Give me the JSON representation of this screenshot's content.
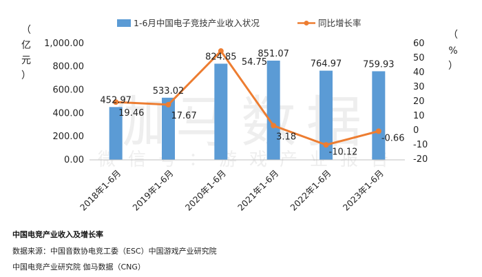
{
  "chart_data": {
    "type": "bar",
    "categories": [
      "2018年1-6月",
      "2019年1-6月",
      "2020年1-6月",
      "2021年1-6月",
      "2022年1-6月",
      "2023年1-6月"
    ],
    "series": [
      {
        "name": "1-6月中国电子竞技产业收入状况",
        "type": "bar",
        "axis": "left",
        "color": "#5b9bd5",
        "values": [
          452.97,
          533.02,
          824.85,
          851.07,
          764.97,
          759.93
        ],
        "labels": [
          "452.97",
          "533.02",
          "824.85",
          "851.07",
          "764.97",
          "759.93"
        ]
      },
      {
        "name": "同比增长率",
        "type": "line",
        "axis": "right",
        "color": "#ed7d31",
        "values": [
          19.46,
          17.67,
          54.75,
          3.18,
          -10.12,
          -0.66
        ],
        "labels": [
          "19.46",
          "17.67",
          "54.75",
          "3.18",
          "-10.12",
          "-0.66"
        ]
      }
    ],
    "y_left": {
      "label_chars": [
        "（",
        "亿",
        "元",
        "）"
      ],
      "range": [
        0,
        1000
      ],
      "ticks": [
        "0.00",
        "200.00",
        "400.00",
        "600.00",
        "800.00",
        "1,000.00"
      ],
      "tick_values": [
        0,
        200,
        400,
        600,
        800,
        1000
      ]
    },
    "y_right": {
      "label_chars": [
        "（",
        "%",
        "）"
      ],
      "range": [
        -20,
        60
      ],
      "ticks": [
        "-20",
        "-10",
        "0",
        "10",
        "20",
        "30",
        "40",
        "50",
        "60"
      ],
      "tick_values": [
        -20,
        -10,
        0,
        10,
        20,
        30,
        40,
        50,
        60
      ]
    },
    "grid": false,
    "legend_position": "top-center"
  },
  "watermark": {
    "main": "伽马数据",
    "sub": "微信号：游戏产业报告"
  },
  "footer": {
    "title": "中国电竞产业收入及增长率",
    "source_line1": "数据来源：中国音数协电竞工委（ESC）中国游戏产业研究院",
    "source_line2": "中国电竞产业研究院  伽马数据（CNG）"
  }
}
